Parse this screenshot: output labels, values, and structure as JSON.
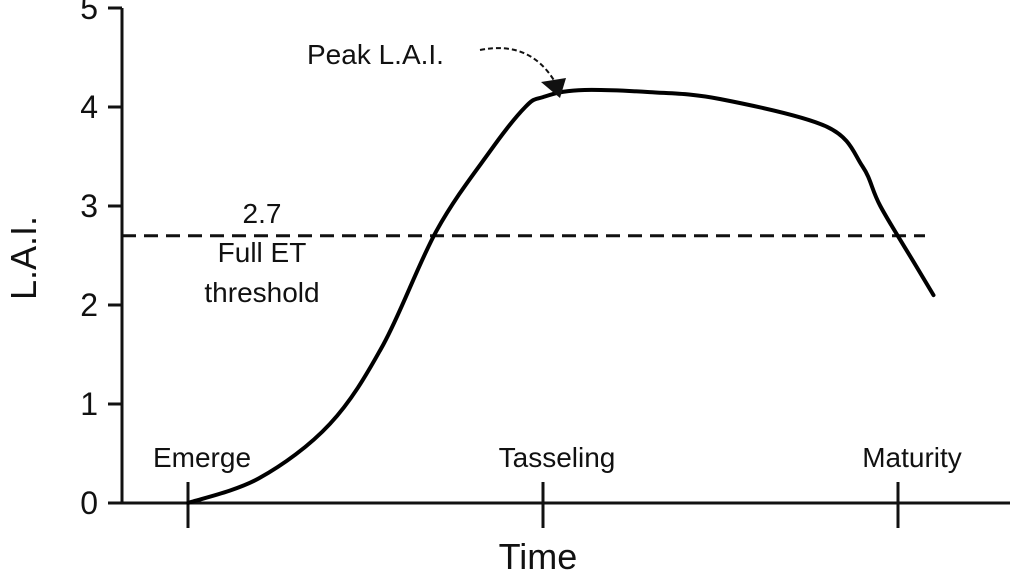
{
  "chart_data": {
    "type": "line",
    "title": "",
    "xlabel": "Time",
    "ylabel": "L.A.I.",
    "ylim": [
      0,
      5
    ],
    "yticks": [
      "0",
      "1",
      "2",
      "3",
      "4",
      "5"
    ],
    "stages": [
      "Emerge",
      "Tasseling",
      "Maturity"
    ],
    "xlim": [
      -0.2,
      2.3
    ],
    "series": [
      {
        "x": [
          0.0,
          0.2,
          0.4,
          0.55,
          0.7,
          0.85,
          0.95,
          1.0,
          1.1,
          1.3,
          1.5,
          1.8,
          1.9,
          1.95,
          2.05,
          2.1
        ],
        "y": [
          0.0,
          0.25,
          0.8,
          1.6,
          2.75,
          3.55,
          4.0,
          4.1,
          4.17,
          4.15,
          4.08,
          3.8,
          3.4,
          3.0,
          2.4,
          2.1
        ]
      }
    ],
    "threshold": {
      "value": "2.7",
      "label_line1": "Full ET",
      "label_line2": "threshold"
    },
    "annotation": {
      "text": "Peak L.A.I."
    }
  }
}
